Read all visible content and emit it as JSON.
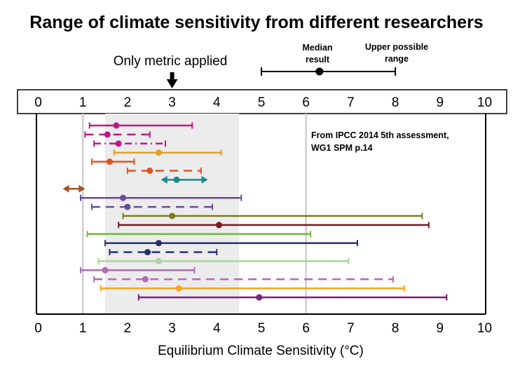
{
  "chart_data": {
    "type": "range",
    "title": "Range of climate sensitivity from different researchers",
    "xlabel": "Equilibrium Climate Sensitivity (°C)",
    "xlim": [
      0,
      10
    ],
    "x_ticks": [
      "0",
      "1",
      "2",
      "3",
      "4",
      "5",
      "6",
      "7",
      "8",
      "9",
      "10"
    ],
    "shaded_range": [
      1.5,
      4.5
    ],
    "reference_lines": [
      1,
      6
    ],
    "only_metric_label": "Only metric applied",
    "only_metric_value": 3,
    "source_note_line1": "From IPCC 2014 5th assessment,",
    "source_note_line2": "WG1 SPM p.14",
    "legend": {
      "median_label_line1": "Median",
      "median_label_line2": "result",
      "upper_label_line1": "Upper possible",
      "upper_label_line2": "range",
      "low": 5,
      "median": 6.3,
      "high": 8
    },
    "series": [
      {
        "low": 1.15,
        "median": 1.75,
        "high": 3.45,
        "color": "#c0178a",
        "dash": "solid"
      },
      {
        "low": 1.05,
        "median": 1.55,
        "high": 2.5,
        "color": "#c0178a",
        "dash": "dashed"
      },
      {
        "low": 1.25,
        "median": 1.8,
        "high": 2.85,
        "color": "#c0178a",
        "dash": "dashdot"
      },
      {
        "low": 1.7,
        "median": 2.7,
        "high": 4.1,
        "color": "#e0a12a",
        "dash": "solid"
      },
      {
        "low": 1.2,
        "median": 1.6,
        "high": 2.15,
        "color": "#e2531f",
        "dash": "solid"
      },
      {
        "low": 2.0,
        "median": 2.5,
        "high": 3.65,
        "color": "#e2531f",
        "dash": "dashed"
      },
      {
        "low": 2.75,
        "median": 3.1,
        "high": 3.8,
        "color": "#1a8a8a",
        "dash": "arrow"
      },
      {
        "low": 0.55,
        "median": 0.7,
        "high": 1.05,
        "color": "#a0522d",
        "dash": "arrow"
      },
      {
        "low": 0.95,
        "median": 1.9,
        "high": 4.55,
        "color": "#6a4aa0",
        "dash": "solid"
      },
      {
        "low": 1.2,
        "median": 2.0,
        "high": 3.9,
        "color": "#6a4aa0",
        "dash": "dashed"
      },
      {
        "low": 1.9,
        "median": 3.0,
        "high": 8.6,
        "color": "#7f7a1e",
        "dash": "solid"
      },
      {
        "low": 1.8,
        "median": 4.05,
        "high": 8.75,
        "color": "#7a1b1b",
        "dash": "solid"
      },
      {
        "low": 1.1,
        "median": null,
        "high": 6.1,
        "color": "#6fba3a",
        "dash": "solid"
      },
      {
        "low": 1.5,
        "median": 2.7,
        "high": 7.15,
        "color": "#2a2f6e",
        "dash": "solid"
      },
      {
        "low": 1.6,
        "median": 2.45,
        "high": 4.0,
        "color": "#2a2f6e",
        "dash": "dashed"
      },
      {
        "low": 1.35,
        "median": 2.7,
        "high": 6.95,
        "color": "#a9d49a",
        "dash": "solid"
      },
      {
        "low": 0.95,
        "median": 1.5,
        "high": 3.5,
        "color": "#b06ab0",
        "dash": "solid"
      },
      {
        "low": 1.25,
        "median": 2.4,
        "high": 7.95,
        "color": "#b06ab0",
        "dash": "dashed"
      },
      {
        "low": 1.4,
        "median": 3.15,
        "high": 8.2,
        "color": "#f5a623",
        "dash": "solid"
      },
      {
        "low": 2.25,
        "median": 4.95,
        "high": 9.15,
        "color": "#7b1f7e",
        "dash": "solid"
      }
    ]
  }
}
